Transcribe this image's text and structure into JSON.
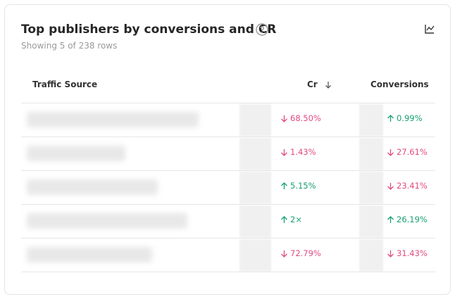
{
  "header": {
    "title": "Top publishers by conversions and CR",
    "subtitle": "Showing 5 of 238 rows"
  },
  "table": {
    "columns": [
      "Traffic Source",
      "Cr",
      "Conversions"
    ],
    "rows": [
      {
        "cr": {
          "text": "68.50%",
          "direction": "down"
        },
        "conversions": {
          "text": "0.99%",
          "direction": "up"
        }
      },
      {
        "cr": {
          "text": "1.43%",
          "direction": "down"
        },
        "conversions": {
          "text": "27.61%",
          "direction": "down"
        }
      },
      {
        "cr": {
          "text": "5.15%",
          "direction": "up"
        },
        "conversions": {
          "text": "23.41%",
          "direction": "down"
        }
      },
      {
        "cr": {
          "text": "2×",
          "direction": "up"
        },
        "conversions": {
          "text": "26.19%",
          "direction": "up"
        }
      },
      {
        "cr": {
          "text": "72.79%",
          "direction": "down"
        },
        "conversions": {
          "text": "31.43%",
          "direction": "down"
        }
      }
    ]
  }
}
